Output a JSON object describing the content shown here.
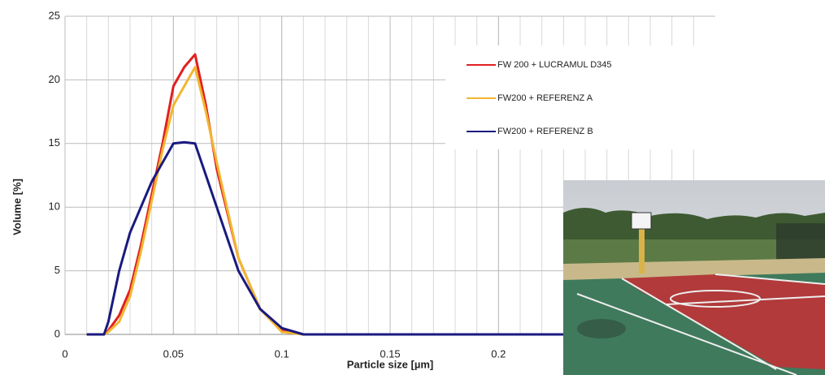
{
  "chart_data": {
    "type": "line",
    "y_label": "Volume [%]",
    "x_label": "Particle size [µm]",
    "x": [
      0.01,
      0.018,
      0.02,
      0.025,
      0.03,
      0.035,
      0.04,
      0.045,
      0.05,
      0.055,
      0.06,
      0.065,
      0.07,
      0.08,
      0.09,
      0.1,
      0.11,
      0.12,
      0.3
    ],
    "series": [
      {
        "name": "FW 200 + LUCRAMUL D345",
        "color": "#e02020",
        "values": [
          0,
          0,
          0.3,
          1.5,
          3.5,
          7,
          11,
          15,
          19.5,
          21,
          22,
          18,
          13,
          6,
          2,
          0.3,
          0,
          0,
          0
        ]
      },
      {
        "name": "FW200 + REFERENZ A",
        "color": "#f2b630",
        "values": [
          0,
          0,
          0.2,
          1,
          3,
          6.5,
          10.5,
          14.5,
          18,
          19.5,
          21,
          17.5,
          13.5,
          6,
          2,
          0.2,
          0,
          0,
          0
        ]
      },
      {
        "name": "FW200 + REFERENZ B",
        "color": "#1a1a80",
        "values": [
          0,
          0,
          1,
          5,
          8,
          10,
          12,
          13.5,
          15,
          15.1,
          15,
          12.5,
          10,
          5,
          2,
          0.5,
          0,
          0,
          0
        ]
      }
    ],
    "xlim": [
      0,
      0.3
    ],
    "xticks": [
      0,
      0.05,
      0.1,
      0.15,
      0.2
    ],
    "ylim": [
      0,
      25
    ],
    "yticks": [
      0,
      5,
      10,
      15,
      20,
      25
    ],
    "grid": true
  }
}
